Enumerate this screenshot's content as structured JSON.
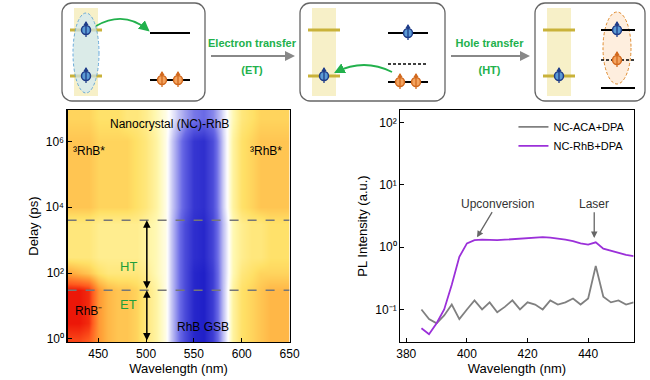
{
  "schematic": {
    "steps": [
      {
        "label": "Electron transfer",
        "abbr": "(ET)"
      },
      {
        "label": "Hole transfer",
        "abbr": "(HT)"
      }
    ]
  },
  "chart_data": [
    {
      "type": "heatmap",
      "x_label": "Wavelength (nm)",
      "y_label": "Delay (ps)",
      "log": "y",
      "x": [
        420,
        430,
        440,
        450,
        460,
        470,
        480,
        490,
        500,
        510,
        520,
        530,
        540,
        550,
        560,
        570,
        580,
        590,
        600,
        610,
        620,
        630,
        640,
        650
      ],
      "y": [
        1,
        3,
        10,
        30,
        100,
        300,
        1000,
        3000,
        10000,
        30000,
        100000,
        1000000,
        5000000
      ],
      "z": [
        [
          0.85,
          0.85,
          0.8,
          0.6,
          0.5,
          0.45,
          0.45,
          0.4,
          0.3,
          0.2,
          0.05,
          -0.3,
          -0.7,
          -0.95,
          -1,
          -0.8,
          -0.2,
          0.2,
          0.35,
          0.4,
          0.45,
          0.5,
          0.5,
          0.5
        ],
        [
          0.95,
          0.95,
          0.9,
          0.6,
          0.5,
          0.45,
          0.45,
          0.4,
          0.3,
          0.2,
          0.05,
          -0.3,
          -0.7,
          -0.95,
          -1,
          -0.8,
          -0.2,
          0.2,
          0.35,
          0.4,
          0.45,
          0.5,
          0.5,
          0.5
        ],
        [
          0.95,
          0.95,
          0.9,
          0.6,
          0.5,
          0.45,
          0.45,
          0.4,
          0.3,
          0.2,
          0.05,
          -0.3,
          -0.7,
          -0.95,
          -1,
          -0.8,
          -0.2,
          0.2,
          0.35,
          0.4,
          0.45,
          0.5,
          0.5,
          0.5
        ],
        [
          0.95,
          0.95,
          0.9,
          0.6,
          0.5,
          0.45,
          0.45,
          0.4,
          0.3,
          0.2,
          0.05,
          -0.3,
          -0.7,
          -0.95,
          -1,
          -0.8,
          -0.2,
          0.2,
          0.35,
          0.4,
          0.45,
          0.5,
          0.5,
          0.5
        ],
        [
          0.55,
          0.5,
          0.45,
          0.35,
          0.3,
          0.3,
          0.3,
          0.3,
          0.25,
          0.15,
          0.05,
          -0.3,
          -0.7,
          -0.95,
          -1,
          -0.8,
          -0.2,
          0.15,
          0.3,
          0.35,
          0.4,
          0.4,
          0.4,
          0.4
        ],
        [
          0.3,
          0.3,
          0.3,
          0.25,
          0.25,
          0.25,
          0.25,
          0.25,
          0.2,
          0.15,
          0.05,
          -0.3,
          -0.7,
          -0.9,
          -0.95,
          -0.75,
          -0.2,
          0.15,
          0.25,
          0.3,
          0.3,
          0.35,
          0.35,
          0.35
        ],
        [
          0.3,
          0.3,
          0.3,
          0.25,
          0.25,
          0.25,
          0.25,
          0.25,
          0.2,
          0.15,
          0.05,
          -0.3,
          -0.7,
          -0.9,
          -0.95,
          -0.75,
          -0.2,
          0.15,
          0.25,
          0.3,
          0.3,
          0.35,
          0.35,
          0.35
        ],
        [
          0.3,
          0.3,
          0.3,
          0.25,
          0.25,
          0.25,
          0.25,
          0.25,
          0.2,
          0.15,
          0.05,
          -0.3,
          -0.7,
          -0.9,
          -0.95,
          -0.75,
          -0.2,
          0.15,
          0.25,
          0.3,
          0.3,
          0.35,
          0.35,
          0.35
        ],
        [
          0.45,
          0.45,
          0.45,
          0.4,
          0.4,
          0.4,
          0.4,
          0.35,
          0.3,
          0.2,
          0.05,
          -0.25,
          -0.6,
          -0.85,
          -0.9,
          -0.7,
          -0.15,
          0.2,
          0.35,
          0.4,
          0.45,
          0.45,
          0.45,
          0.45
        ],
        [
          0.45,
          0.45,
          0.45,
          0.4,
          0.4,
          0.4,
          0.4,
          0.35,
          0.3,
          0.2,
          0.05,
          -0.25,
          -0.6,
          -0.85,
          -0.9,
          -0.7,
          -0.15,
          0.2,
          0.35,
          0.4,
          0.45,
          0.45,
          0.45,
          0.45
        ],
        [
          0.45,
          0.45,
          0.45,
          0.4,
          0.4,
          0.4,
          0.4,
          0.35,
          0.3,
          0.2,
          0.05,
          -0.25,
          -0.6,
          -0.85,
          -0.9,
          -0.7,
          -0.15,
          0.2,
          0.35,
          0.4,
          0.45,
          0.45,
          0.45,
          0.45
        ],
        [
          0.45,
          0.45,
          0.45,
          0.4,
          0.4,
          0.4,
          0.4,
          0.35,
          0.3,
          0.2,
          0.05,
          -0.25,
          -0.6,
          -0.85,
          -0.9,
          -0.7,
          -0.15,
          0.2,
          0.35,
          0.4,
          0.45,
          0.45,
          0.45,
          0.45
        ],
        [
          0.4,
          0.4,
          0.4,
          0.35,
          0.35,
          0.35,
          0.3,
          0.3,
          0.25,
          0.15,
          0.05,
          -0.1,
          -0.3,
          -0.45,
          -0.5,
          -0.4,
          -0.1,
          0.15,
          0.3,
          0.35,
          0.4,
          0.4,
          0.4,
          0.4
        ]
      ],
      "xlim": [
        418,
        650
      ],
      "xticks": [
        450,
        500,
        550,
        600,
        650
      ],
      "ylim": [
        0.8,
        9000000
      ],
      "yticks": [
        {
          "value": 1,
          "label": "10⁰"
        },
        {
          "value": 100,
          "label": "10²"
        },
        {
          "value": 10000,
          "label": "10⁴"
        },
        {
          "value": 1000000,
          "label": "10⁶"
        }
      ],
      "dashed_lines": [
        30,
        4000
      ],
      "annotations": [
        {
          "text": "Nanocrystal (NC)-RhB",
          "x": 525,
          "y": 3500000
        },
        {
          "text": "³RhB*",
          "x": 440,
          "y": 500000
        },
        {
          "text": "³RhB*",
          "x": 625,
          "y": 500000
        },
        {
          "text": "RhB⁻",
          "x": 440,
          "y": 7
        },
        {
          "text": "RhB GSB",
          "x": 560,
          "y": 2.3
        },
        {
          "text": "HT",
          "x": 482,
          "y": 160
        },
        {
          "text": "ET",
          "x": 482,
          "y": 11
        }
      ]
    },
    {
      "type": "line",
      "x_label": "Wavelength (nm)",
      "y_label": "PL Intensity (a.u.)",
      "log": "y",
      "x": [
        385,
        387.5,
        390,
        392.5,
        395,
        397.5,
        400,
        402.5,
        405,
        407.5,
        410,
        412.5,
        415,
        417.5,
        420,
        422.5,
        425,
        427.5,
        430,
        432.5,
        435,
        437.5,
        440,
        442.5,
        445,
        447.5,
        450,
        452.5,
        455
      ],
      "series": [
        {
          "name": "NC-ACA+DPA",
          "color": "#808080",
          "values": [
            0.1,
            0.07,
            0.06,
            0.08,
            0.12,
            0.07,
            0.1,
            0.14,
            0.1,
            0.13,
            0.09,
            0.11,
            0.14,
            0.1,
            0.13,
            0.12,
            0.1,
            0.14,
            0.12,
            0.13,
            0.15,
            0.12,
            0.15,
            0.5,
            0.16,
            0.13,
            0.14,
            0.12,
            0.13
          ]
        },
        {
          "name": "NC-RhB+DPA",
          "color": "#9b30d9",
          "values": [
            0.05,
            0.04,
            0.06,
            0.1,
            0.25,
            0.7,
            1.15,
            1.3,
            1.32,
            1.3,
            1.3,
            1.32,
            1.35,
            1.38,
            1.4,
            1.42,
            1.45,
            1.42,
            1.38,
            1.32,
            1.25,
            1.15,
            1.1,
            1.2,
            0.95,
            0.88,
            0.8,
            0.75,
            0.72
          ]
        }
      ],
      "xlim": [
        378,
        455
      ],
      "xticks": [
        380,
        400,
        420,
        440
      ],
      "ylim": [
        0.03,
        160
      ],
      "yticks": [
        {
          "value": 0.1,
          "label": "10⁻¹"
        },
        {
          "value": 1,
          "label": "10⁰"
        },
        {
          "value": 10,
          "label": "10¹"
        },
        {
          "value": 100,
          "label": "10²"
        }
      ],
      "legend": "top right",
      "annotations": [
        {
          "text": "Upconversion",
          "x": 403,
          "y": 1.35,
          "text_x": 410,
          "text_y": 5
        },
        {
          "text": "Laser",
          "x": 442,
          "y": 1.3,
          "text_x": 442,
          "text_y": 5
        }
      ]
    }
  ]
}
